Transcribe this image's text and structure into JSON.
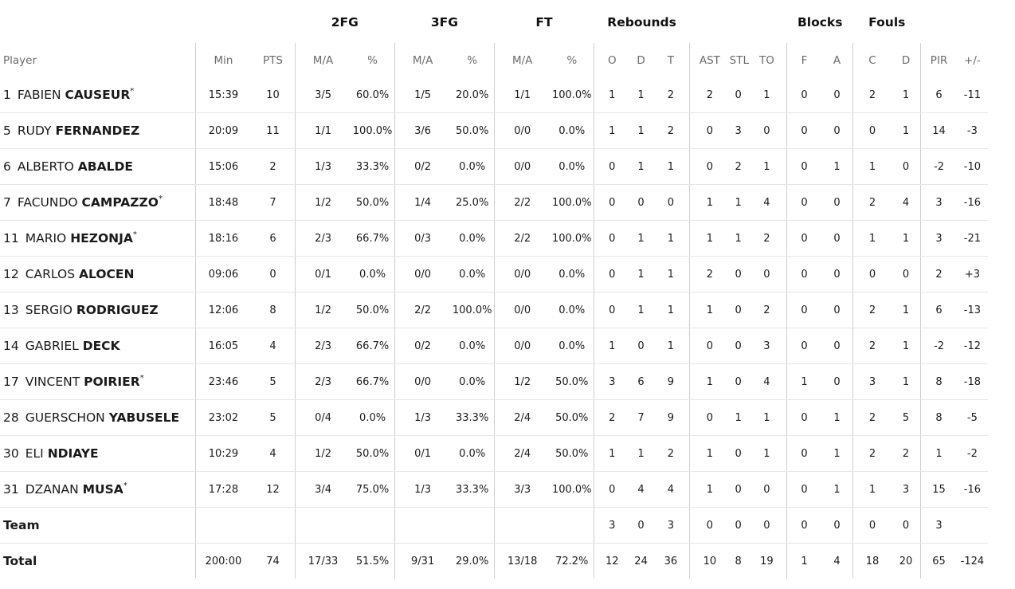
{
  "header": {
    "groups": {
      "fg2": "2FG",
      "fg3": "3FG",
      "ft": "FT",
      "rebounds": "Rebounds",
      "blocks": "Blocks",
      "fouls": "Fouls"
    },
    "columns": {
      "player": "Player",
      "min": "Min",
      "pts": "PTS",
      "fg2_ma": "M/A",
      "fg2_pct": "%",
      "fg3_ma": "M/A",
      "fg3_pct": "%",
      "ft_ma": "M/A",
      "ft_pct": "%",
      "reb_o": "O",
      "reb_d": "D",
      "reb_t": "T",
      "ast": "AST",
      "stl": "STL",
      "to": "TO",
      "blk_f": "F",
      "blk_a": "A",
      "foul_c": "C",
      "foul_d": "D",
      "pir": "PIR",
      "pm": "+/-"
    }
  },
  "players": [
    {
      "num": "1",
      "first": "FABIEN",
      "last": "CAUSEUR",
      "star": "*",
      "min": "15:39",
      "pts": "10",
      "fg2_ma": "3/5",
      "fg2_pct": "60.0%",
      "fg3_ma": "1/5",
      "fg3_pct": "20.0%",
      "ft_ma": "1/1",
      "ft_pct": "100.0%",
      "reb_o": "1",
      "reb_d": "1",
      "reb_t": "2",
      "ast": "2",
      "stl": "0",
      "to": "1",
      "blk_f": "0",
      "blk_a": "0",
      "foul_c": "2",
      "foul_d": "1",
      "pir": "6",
      "pm": "-11"
    },
    {
      "num": "5",
      "first": "RUDY",
      "last": "FERNANDEZ",
      "star": "",
      "min": "20:09",
      "pts": "11",
      "fg2_ma": "1/1",
      "fg2_pct": "100.0%",
      "fg3_ma": "3/6",
      "fg3_pct": "50.0%",
      "ft_ma": "0/0",
      "ft_pct": "0.0%",
      "reb_o": "1",
      "reb_d": "1",
      "reb_t": "2",
      "ast": "0",
      "stl": "3",
      "to": "0",
      "blk_f": "0",
      "blk_a": "0",
      "foul_c": "0",
      "foul_d": "1",
      "pir": "14",
      "pm": "-3"
    },
    {
      "num": "6",
      "first": "ALBERTO",
      "last": "ABALDE",
      "star": "",
      "min": "15:06",
      "pts": "2",
      "fg2_ma": "1/3",
      "fg2_pct": "33.3%",
      "fg3_ma": "0/2",
      "fg3_pct": "0.0%",
      "ft_ma": "0/0",
      "ft_pct": "0.0%",
      "reb_o": "0",
      "reb_d": "1",
      "reb_t": "1",
      "ast": "0",
      "stl": "2",
      "to": "1",
      "blk_f": "0",
      "blk_a": "1",
      "foul_c": "1",
      "foul_d": "0",
      "pir": "-2",
      "pm": "-10"
    },
    {
      "num": "7",
      "first": "FACUNDO",
      "last": "CAMPAZZO",
      "star": "*",
      "min": "18:48",
      "pts": "7",
      "fg2_ma": "1/2",
      "fg2_pct": "50.0%",
      "fg3_ma": "1/4",
      "fg3_pct": "25.0%",
      "ft_ma": "2/2",
      "ft_pct": "100.0%",
      "reb_o": "0",
      "reb_d": "0",
      "reb_t": "0",
      "ast": "1",
      "stl": "1",
      "to": "4",
      "blk_f": "0",
      "blk_a": "0",
      "foul_c": "2",
      "foul_d": "4",
      "pir": "3",
      "pm": "-16"
    },
    {
      "num": "11",
      "first": "MARIO",
      "last": "HEZONJA",
      "star": "*",
      "min": "18:16",
      "pts": "6",
      "fg2_ma": "2/3",
      "fg2_pct": "66.7%",
      "fg3_ma": "0/3",
      "fg3_pct": "0.0%",
      "ft_ma": "2/2",
      "ft_pct": "100.0%",
      "reb_o": "0",
      "reb_d": "1",
      "reb_t": "1",
      "ast": "1",
      "stl": "1",
      "to": "2",
      "blk_f": "0",
      "blk_a": "0",
      "foul_c": "1",
      "foul_d": "1",
      "pir": "3",
      "pm": "-21"
    },
    {
      "num": "12",
      "first": "CARLOS",
      "last": "ALOCEN",
      "star": "",
      "min": "09:06",
      "pts": "0",
      "fg2_ma": "0/1",
      "fg2_pct": "0.0%",
      "fg3_ma": "0/0",
      "fg3_pct": "0.0%",
      "ft_ma": "0/0",
      "ft_pct": "0.0%",
      "reb_o": "0",
      "reb_d": "1",
      "reb_t": "1",
      "ast": "2",
      "stl": "0",
      "to": "0",
      "blk_f": "0",
      "blk_a": "0",
      "foul_c": "0",
      "foul_d": "0",
      "pir": "2",
      "pm": "+3"
    },
    {
      "num": "13",
      "first": "SERGIO",
      "last": "RODRIGUEZ",
      "star": "",
      "min": "12:06",
      "pts": "8",
      "fg2_ma": "1/2",
      "fg2_pct": "50.0%",
      "fg3_ma": "2/2",
      "fg3_pct": "100.0%",
      "ft_ma": "0/0",
      "ft_pct": "0.0%",
      "reb_o": "0",
      "reb_d": "1",
      "reb_t": "1",
      "ast": "1",
      "stl": "0",
      "to": "2",
      "blk_f": "0",
      "blk_a": "0",
      "foul_c": "2",
      "foul_d": "1",
      "pir": "6",
      "pm": "-13"
    },
    {
      "num": "14",
      "first": "GABRIEL",
      "last": "DECK",
      "star": "",
      "min": "16:05",
      "pts": "4",
      "fg2_ma": "2/3",
      "fg2_pct": "66.7%",
      "fg3_ma": "0/2",
      "fg3_pct": "0.0%",
      "ft_ma": "0/0",
      "ft_pct": "0.0%",
      "reb_o": "1",
      "reb_d": "0",
      "reb_t": "1",
      "ast": "0",
      "stl": "0",
      "to": "3",
      "blk_f": "0",
      "blk_a": "0",
      "foul_c": "2",
      "foul_d": "1",
      "pir": "-2",
      "pm": "-12"
    },
    {
      "num": "17",
      "first": "VINCENT",
      "last": "POIRIER",
      "star": "*",
      "min": "23:46",
      "pts": "5",
      "fg2_ma": "2/3",
      "fg2_pct": "66.7%",
      "fg3_ma": "0/0",
      "fg3_pct": "0.0%",
      "ft_ma": "1/2",
      "ft_pct": "50.0%",
      "reb_o": "3",
      "reb_d": "6",
      "reb_t": "9",
      "ast": "1",
      "stl": "0",
      "to": "4",
      "blk_f": "1",
      "blk_a": "0",
      "foul_c": "3",
      "foul_d": "1",
      "pir": "8",
      "pm": "-18"
    },
    {
      "num": "28",
      "first": "GUERSCHON",
      "last": "YABUSELE",
      "star": "",
      "min": "23:02",
      "pts": "5",
      "fg2_ma": "0/4",
      "fg2_pct": "0.0%",
      "fg3_ma": "1/3",
      "fg3_pct": "33.3%",
      "ft_ma": "2/4",
      "ft_pct": "50.0%",
      "reb_o": "2",
      "reb_d": "7",
      "reb_t": "9",
      "ast": "0",
      "stl": "1",
      "to": "1",
      "blk_f": "0",
      "blk_a": "1",
      "foul_c": "2",
      "foul_d": "5",
      "pir": "8",
      "pm": "-5"
    },
    {
      "num": "30",
      "first": "ELI",
      "last": "NDIAYE",
      "star": "",
      "min": "10:29",
      "pts": "4",
      "fg2_ma": "1/2",
      "fg2_pct": "50.0%",
      "fg3_ma": "0/1",
      "fg3_pct": "0.0%",
      "ft_ma": "2/4",
      "ft_pct": "50.0%",
      "reb_o": "1",
      "reb_d": "1",
      "reb_t": "2",
      "ast": "1",
      "stl": "0",
      "to": "1",
      "blk_f": "0",
      "blk_a": "1",
      "foul_c": "2",
      "foul_d": "2",
      "pir": "1",
      "pm": "-2"
    },
    {
      "num": "31",
      "first": "DZANAN",
      "last": "MUSA",
      "star": "*",
      "min": "17:28",
      "pts": "12",
      "fg2_ma": "3/4",
      "fg2_pct": "75.0%",
      "fg3_ma": "1/3",
      "fg3_pct": "33.3%",
      "ft_ma": "3/3",
      "ft_pct": "100.0%",
      "reb_o": "0",
      "reb_d": "4",
      "reb_t": "4",
      "ast": "1",
      "stl": "0",
      "to": "0",
      "blk_f": "0",
      "blk_a": "1",
      "foul_c": "1",
      "foul_d": "3",
      "pir": "15",
      "pm": "-16"
    }
  ],
  "team": {
    "label": "Team",
    "min": "",
    "pts": "",
    "fg2_ma": "",
    "fg2_pct": "",
    "fg3_ma": "",
    "fg3_pct": "",
    "ft_ma": "",
    "ft_pct": "",
    "reb_o": "3",
    "reb_d": "0",
    "reb_t": "3",
    "ast": "0",
    "stl": "0",
    "to": "0",
    "blk_f": "0",
    "blk_a": "0",
    "foul_c": "0",
    "foul_d": "0",
    "pir": "3",
    "pm": ""
  },
  "total": {
    "label": "Total",
    "min": "200:00",
    "pts": "74",
    "fg2_ma": "17/33",
    "fg2_pct": "51.5%",
    "fg3_ma": "9/31",
    "fg3_pct": "29.0%",
    "ft_ma": "13/18",
    "ft_pct": "72.2%",
    "reb_o": "12",
    "reb_d": "24",
    "reb_t": "36",
    "ast": "10",
    "stl": "8",
    "to": "19",
    "blk_f": "1",
    "blk_a": "4",
    "foul_c": "18",
    "foul_d": "20",
    "pir": "65",
    "pm": "-124"
  }
}
